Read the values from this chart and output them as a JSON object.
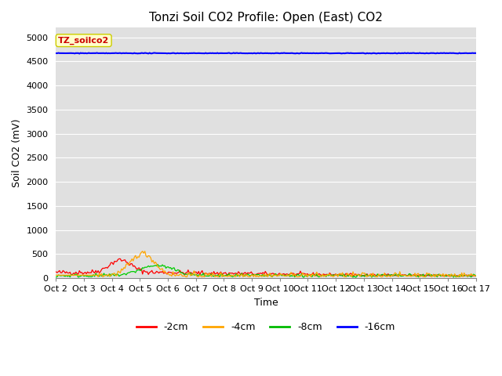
{
  "title": "Tonzi Soil CO2 Profile: Open (East) CO2",
  "ylabel": "Soil CO2 (mV)",
  "xlabel": "Time",
  "ylim": [
    0,
    5200
  ],
  "yticks": [
    0,
    500,
    1000,
    1500,
    2000,
    2500,
    3000,
    3500,
    4000,
    4500,
    5000
  ],
  "x_labels": [
    "Oct 2",
    "Oct 3",
    "Oct 4",
    "Oct 5",
    "Oct 6",
    "Oct 7",
    "Oct 8",
    "Oct 9",
    "Oct 10",
    "Oct 11",
    "Oct 12",
    "Oct 13",
    "Oct 14",
    "Oct 15",
    "Oct 16",
    "Oct 17"
  ],
  "legend_labels": [
    "-2cm",
    "-4cm",
    "-8cm",
    "-16cm"
  ],
  "legend_colors": [
    "#ff0000",
    "#ffa500",
    "#00bb00",
    "#0000ff"
  ],
  "line_colors": [
    "#ff0000",
    "#ffa500",
    "#00cc00",
    "#0000ff"
  ],
  "fig_bg_color": "#ffffff",
  "plot_bg_color": "#e0e0e0",
  "annotation_text": "TZ_soilco2",
  "annotation_bg": "#ffffcc",
  "annotation_border": "#cccc00",
  "title_fontsize": 11,
  "axis_label_fontsize": 9,
  "tick_fontsize": 8
}
